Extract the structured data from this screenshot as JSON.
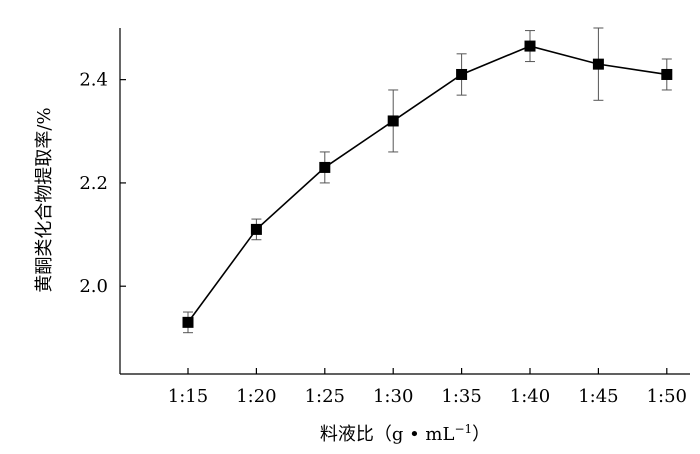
{
  "chart_data": {
    "type": "line",
    "xlabel": "料液比（g • mL",
    "xlabel_sup": "−1",
    "xlabel_close": "）",
    "ylabel": "黄酮类化合物提取率/%",
    "categories": [
      "1:15",
      "1:20",
      "1:25",
      "1:30",
      "1:35",
      "1:40",
      "1:45",
      "1:50"
    ],
    "series": [
      {
        "values": [
          1.93,
          2.11,
          2.23,
          2.32,
          2.41,
          2.465,
          2.43,
          2.41
        ],
        "error": [
          0.02,
          0.02,
          0.03,
          0.06,
          0.04,
          0.03,
          0.07,
          0.03
        ],
        "marker": "square",
        "color": "#000000"
      }
    ],
    "ylim": [
      1.83,
      2.5
    ],
    "yticks": [
      2.0,
      2.2,
      2.4
    ],
    "ytick_labels": [
      "2.0",
      "2.2",
      "2.4"
    ],
    "grid": false,
    "legend": "none"
  }
}
